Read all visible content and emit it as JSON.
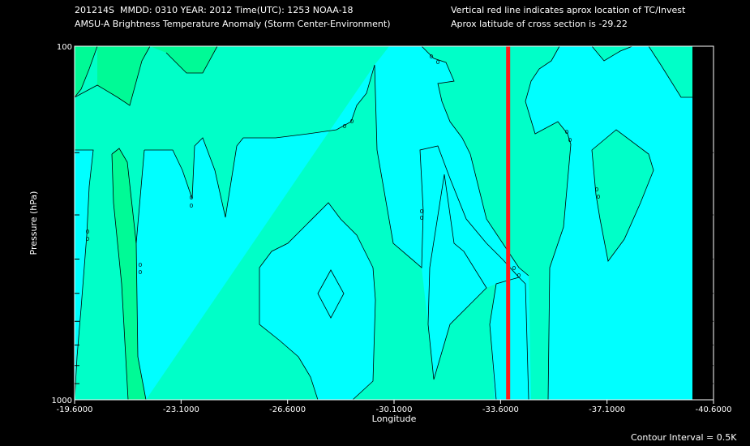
{
  "header": {
    "line1": "201214S  MMDD: 0310 YEAR: 2012 Time(UTC): 1253 NOAA-18",
    "line2": "AMSU-A Brightness Temperature Anomaly (Storm Center-Environment)",
    "note1": "Vertical red line indicates aprox location of TC/Invest",
    "note2": "Aprox latitude of cross section is -29.22"
  },
  "footer": {
    "contour_interval": "Contour Interval = 0.5K"
  },
  "colors": {
    "background": "#000000",
    "level_minus_0_5": "#00C8FF",
    "level_0": "#00FFFF",
    "level_0_5": "#00FFC8",
    "level_1": "#00FA96",
    "tc_line": "#FF1A1A"
  },
  "chart_data": {
    "type": "contour",
    "title": "AMSU-A Brightness Temperature Anomaly (Storm Center-Environment)",
    "xlabel": "Longitude",
    "ylabel": "Pressure (hPa)",
    "x_range": [
      -19.6,
      -40.6
    ],
    "x_ticks": [
      -19.6,
      -23.1,
      -26.6,
      -30.1,
      -33.6,
      -37.1,
      -40.6
    ],
    "x_tick_labels": [
      "-19.6000",
      "-23.1000",
      "-26.6000",
      "-30.1000",
      "-33.6000",
      "-37.1000",
      "-40.6000"
    ],
    "y_scale": "log",
    "y_range": [
      1000,
      100
    ],
    "y_tick_labels": [
      "1000",
      "100"
    ],
    "y_minor_ticks": [
      200,
      300,
      400,
      500,
      600,
      700,
      800,
      900
    ],
    "contour_interval_K": 0.5,
    "contour_labels": [
      "0",
      "0",
      "0",
      "0",
      "0",
      "0",
      "0",
      "0",
      "0"
    ],
    "tc_longitude": -33.85,
    "latitude": -29.22,
    "grid": false
  }
}
